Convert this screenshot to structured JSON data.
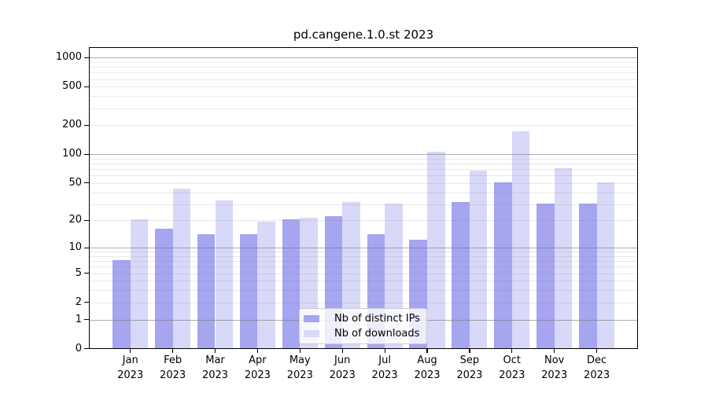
{
  "title": "pd.cangene.1.0.st 2023",
  "chart_data": {
    "type": "bar",
    "title": "pd.cangene.1.0.st 2023",
    "xlabel": "",
    "ylabel": "",
    "categories": [
      "Jan",
      "Feb",
      "Mar",
      "Apr",
      "May",
      "Jun",
      "Jul",
      "Aug",
      "Sep",
      "Oct",
      "Nov",
      "Dec"
    ],
    "year": "2023",
    "series": [
      {
        "name": "Nb of distinct IPs",
        "color": "#a5a5f0",
        "values": [
          7,
          16,
          14,
          14,
          20,
          22,
          14,
          12,
          31,
          50,
          30,
          30
        ]
      },
      {
        "name": "Nb of downloads",
        "color": "#d8d8f8",
        "values": [
          20,
          43,
          32,
          19,
          21,
          31,
          30,
          105,
          66,
          170,
          70,
          50
        ]
      }
    ],
    "yticks": [
      0,
      1,
      2,
      5,
      10,
      20,
      50,
      100,
      200,
      500,
      1000
    ],
    "y_scale": "log10(1+x)",
    "ylim": [
      0,
      1290
    ],
    "grid": "on",
    "grid_major_at": [
      1,
      10,
      100,
      1000
    ],
    "legend_position": "bottom-center"
  }
}
